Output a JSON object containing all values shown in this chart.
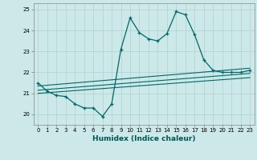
{
  "xlabel": "Humidex (Indice chaleur)",
  "ylabel": "",
  "xlim": [
    -0.5,
    23.5
  ],
  "ylim": [
    19.5,
    25.3
  ],
  "yticks": [
    20,
    21,
    22,
    23,
    24,
    25
  ],
  "xticks": [
    0,
    1,
    2,
    3,
    4,
    5,
    6,
    7,
    8,
    9,
    10,
    11,
    12,
    13,
    14,
    15,
    16,
    17,
    18,
    19,
    20,
    21,
    22,
    23
  ],
  "bg_color": "#cde8e8",
  "grid_color": "#b0d0d0",
  "line_color": "#006868",
  "main_x": [
    0,
    1,
    2,
    3,
    4,
    5,
    6,
    7,
    8,
    9,
    10,
    11,
    12,
    13,
    14,
    15,
    16,
    17,
    18,
    19,
    20,
    21,
    22,
    23
  ],
  "main_y": [
    21.5,
    21.1,
    20.9,
    20.85,
    20.5,
    20.3,
    20.3,
    19.9,
    20.5,
    23.1,
    24.6,
    23.9,
    23.6,
    23.5,
    23.85,
    24.9,
    24.75,
    23.8,
    22.6,
    22.1,
    22.0,
    22.0,
    22.0,
    22.1
  ],
  "trend1_x": [
    0,
    23
  ],
  "trend1_y": [
    21.35,
    22.2
  ],
  "trend2_x": [
    0,
    23
  ],
  "trend2_y": [
    21.15,
    21.95
  ],
  "trend3_x": [
    0,
    23
  ],
  "trend3_y": [
    21.0,
    21.75
  ]
}
